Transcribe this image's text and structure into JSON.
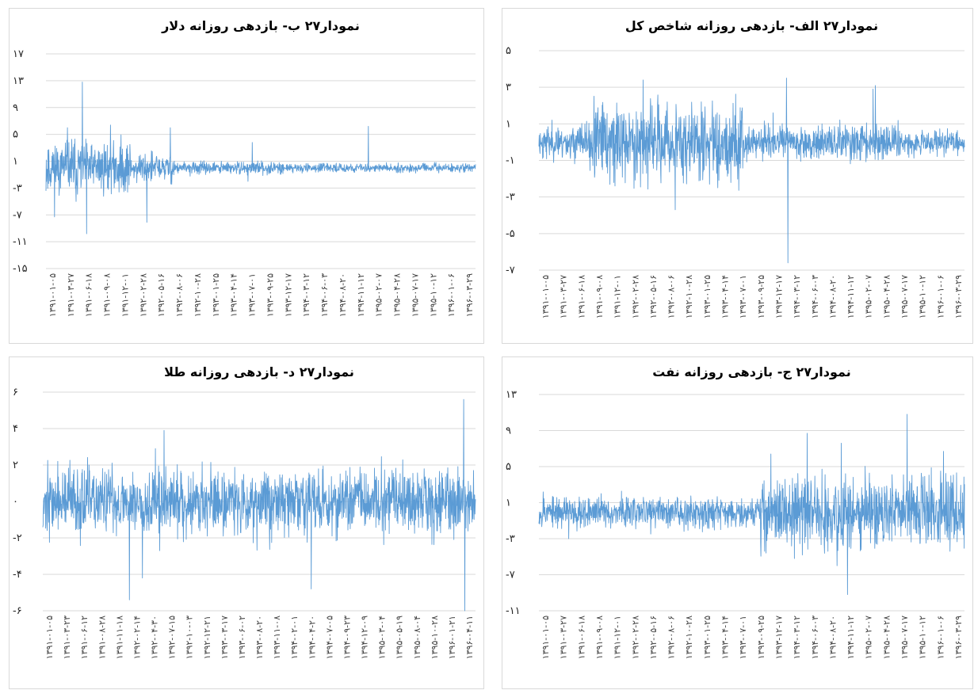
{
  "chart_data": [
    {
      "type": "line",
      "title": "نمودار۲۷ ب- بازدهی روزانه دلار",
      "y_ticks": [
        "۱۷",
        "۱۳",
        "۹",
        "۵",
        "۱",
        "-۳",
        "-۷",
        "-۱۱",
        "-۱۵"
      ],
      "ylim": [
        -15,
        17
      ],
      "x_ticks": [
        "۱۳۹۱-۰۱-۰۵",
        "۱۳۹۱-۰۳-۲۷",
        "۱۳۹۱-۰۶-۱۸",
        "۱۳۹۱-۰۹-۰۸",
        "۱۳۹۱-۱۲-۰۱",
        "۱۳۹۲-۰۲-۲۸",
        "۱۳۹۲-۰۵-۱۶",
        "۱۳۹۲-۰۸-۰۶",
        "۱۳۹۲-۱۰-۲۸",
        "۱۳۹۳-۰۱-۲۵",
        "۱۳۹۳-۰۴-۱۴",
        "۱۳۹۳-۰۷-۰۱",
        "۱۳۹۳-۰۹-۲۵",
        "۱۳۹۳-۱۲-۱۷",
        "۱۳۹۴-۰۳-۱۲",
        "۱۳۹۴-۰۶-۰۳",
        "۱۳۹۴-۰۸-۲۰",
        "۱۳۹۴-۱۱-۱۲",
        "۱۳۹۵-۰۲-۰۷",
        "۱۳۹۵-۰۴-۲۸",
        "۱۳۹۵-۰۷-۱۷",
        "۱۳۹۵-۱۰-۱۲",
        "۱۳۹۶-۰۱-۰۶",
        "۱۳۹۶-۰۳-۲۹"
      ],
      "series": [
        {
          "n": 1500,
          "seed": 11,
          "base": 0,
          "regimes": [
            [
              0,
              0.2,
              1.9
            ],
            [
              0.2,
              0.3,
              1.1
            ],
            [
              0.3,
              0.55,
              0.45
            ],
            [
              0.55,
              1.0,
              0.3
            ]
          ],
          "spikes": [
            [
              0.095,
              16.8
            ],
            [
              0.085,
              12.8
            ],
            [
              0.095,
              -9.8
            ],
            [
              0.02,
              -7.3
            ],
            [
              0.235,
              -8.1
            ],
            [
              0.75,
              -7.8
            ],
            [
              0.75,
              6.2
            ],
            [
              0.29,
              6.0
            ],
            [
              0.05,
              6.0
            ],
            [
              0.15,
              6.4
            ],
            [
              0.07,
              -5.0
            ],
            [
              0.48,
              3.8
            ],
            [
              0.47,
              -2.0
            ],
            [
              0.19,
              -3.6
            ]
          ]
        }
      ],
      "color": "#5b9bd5"
    },
    {
      "type": "line",
      "title": "نمودار۲۷ الف- بازدهی روزانه شاخص کل",
      "y_ticks": [
        "۵",
        "۳",
        "۱",
        "-۱",
        "-۳",
        "-۵",
        "-۷"
      ],
      "ylim": [
        -7,
        5
      ],
      "x_ticks": [
        "۱۳۹۱-۰۱-۰۵",
        "۱۳۹۱-۰۳-۲۷",
        "۱۳۹۱-۰۶-۱۸",
        "۱۳۹۱-۰۹-۰۸",
        "۱۳۹۱-۱۲-۰۱",
        "۱۳۹۲-۰۲-۲۸",
        "۱۳۹۲-۰۵-۱۶",
        "۱۳۹۲-۰۸-۰۶",
        "۱۳۹۲-۱۰-۲۸",
        "۱۳۹۳-۰۱-۲۵",
        "۱۳۹۳-۰۴-۱۴",
        "۱۳۹۳-۰۷-۰۱",
        "۱۳۹۳-۰۹-۲۵",
        "۱۳۹۳-۱۲-۱۷",
        "۱۳۹۴-۰۳-۱۲",
        "۱۳۹۴-۰۶-۰۳",
        "۱۳۹۴-۰۸-۲۰",
        "۱۳۹۴-۱۱-۱۲",
        "۱۳۹۵-۰۲-۰۷",
        "۱۳۹۵-۰۴-۲۸",
        "۱۳۹۵-۰۷-۱۷",
        "۱۳۹۵-۱۰-۱۲",
        "۱۳۹۶-۰۱-۰۶",
        "۱۳۹۶-۰۳-۲۹"
      ],
      "series": [
        {
          "n": 1500,
          "seed": 23,
          "base": 0,
          "regimes": [
            [
              0,
              0.12,
              0.45
            ],
            [
              0.12,
              0.48,
              1.05
            ],
            [
              0.48,
              0.65,
              0.45
            ],
            [
              0.65,
              0.85,
              0.55
            ],
            [
              0.85,
              1.0,
              0.3
            ]
          ],
          "spikes": [
            [
              0.585,
              -6.6
            ],
            [
              0.582,
              3.5
            ],
            [
              0.245,
              3.4
            ],
            [
              0.79,
              3.1
            ],
            [
              0.785,
              2.9
            ],
            [
              0.32,
              -3.7
            ],
            [
              0.55,
              1.6
            ]
          ]
        }
      ],
      "color": "#5b9bd5"
    },
    {
      "type": "line",
      "title": "نمودار۲۷ د- بازدهی روزانه طلا",
      "y_ticks": [
        "۶",
        "۴",
        "۲",
        "۰",
        "-۲",
        "-۴",
        "-۶"
      ],
      "ylim": [
        -6,
        6
      ],
      "x_ticks": [
        "۱۳۹۱-۰۱-۰۵",
        "۱۳۹۱-۰۳-۲۳",
        "۱۳۹۱-۰۶-۱۲",
        "۱۳۹۱-۰۸-۲۸",
        "۱۳۹۱-۱۱-۱۸",
        "۱۳۹۲-۰۲-۱۴",
        "۱۳۹۲-۰۴-۳۰",
        "۱۳۹۲-۰۷-۱۵",
        "۱۳۹۲-۱۰-۰۳",
        "۱۳۹۲-۱۲-۲۱",
        "۱۳۹۳-۰۳-۱۷",
        "۱۳۹۳-۰۶-۰۲",
        "۱۳۹۳-۰۸-۲۰",
        "۱۳۹۳-۱۱-۰۸",
        "۱۳۹۴-۰۲-۰۱",
        "۱۳۹۴-۰۴-۲۰",
        "۱۳۹۴-۰۷-۰۵",
        "۱۳۹۴-۰۹-۲۳",
        "۱۳۹۴-۱۲-۰۹",
        "۱۳۹۵-۰۳-۰۴",
        "۱۳۹۵-۰۵-۱۹",
        "۱۳۹۵-۰۸-۰۴",
        "۱۳۹۵-۱۰-۲۸",
        "۱۳۹۶-۰۱-۲۱",
        "۱۳۹۶-۰۴-۱۱"
      ],
      "series": [
        {
          "n": 1500,
          "seed": 37,
          "base": 0,
          "regimes": [
            [
              0,
              1.0,
              0.9
            ]
          ],
          "spikes": [
            [
              0.975,
              -6.0
            ],
            [
              0.972,
              5.6
            ],
            [
              0.28,
              3.9
            ],
            [
              0.2,
              -5.4
            ],
            [
              0.23,
              -4.2
            ],
            [
              0.62,
              -4.8
            ],
            [
              0.27,
              -2.7
            ],
            [
              0.26,
              2.9
            ]
          ]
        }
      ],
      "color": "#5b9bd5"
    },
    {
      "type": "line",
      "title": "نمودار۲۷ ج- بازدهی روزانه نفت",
      "y_ticks": [
        "۱۳",
        "۹",
        "۵",
        "۱",
        "-۳",
        "-۷",
        "-۱۱"
      ],
      "ylim": [
        -11,
        13
      ],
      "x_ticks": [
        "۱۳۹۱-۰۱-۰۵",
        "۱۳۹۱-۰۳-۲۷",
        "۱۳۹۱-۰۶-۱۸",
        "۱۳۹۱-۰۹-۰۸",
        "۱۳۹۱-۱۲-۰۱",
        "۱۳۹۲-۰۲-۲۸",
        "۱۳۹۲-۰۵-۱۶",
        "۱۳۹۲-۰۸-۰۶",
        "۱۳۹۲-۱۰-۲۸",
        "۱۳۹۳-۰۱-۲۵",
        "۱۳۹۳-۰۴-۱۴",
        "۱۳۹۳-۰۷-۰۱",
        "۱۳۹۳-۰۹-۲۵",
        "۱۳۹۳-۱۲-۱۷",
        "۱۳۹۴-۰۳-۱۲",
        "۱۳۹۴-۰۶-۰۳",
        "۱۳۹۴-۰۸-۲۰",
        "۱۳۹۴-۱۱-۱۲",
        "۱۳۹۵-۰۲-۰۷",
        "۱۳۹۵-۰۴-۲۸",
        "۱۳۹۵-۰۷-۱۷",
        "۱۳۹۵-۱۰-۱۲",
        "۱۳۹۶-۰۱-۰۶",
        "۱۳۹۶-۰۳-۲۹"
      ],
      "series": [
        {
          "n": 1500,
          "seed": 53,
          "base": 0,
          "regimes": [
            [
              0,
              0.52,
              0.85
            ],
            [
              0.52,
              1.0,
              1.9
            ]
          ],
          "spikes": [
            [
              0.865,
              10.8
            ],
            [
              0.63,
              8.7
            ],
            [
              0.545,
              6.4
            ],
            [
              0.71,
              7.6
            ],
            [
              0.725,
              -9.2
            ],
            [
              0.95,
              6.7
            ],
            [
              0.6,
              -5.2
            ],
            [
              0.53,
              -4.4
            ],
            [
              0.7,
              -6.0
            ],
            [
              0.01,
              2.2
            ],
            [
              0.07,
              -3.0
            ]
          ]
        }
      ],
      "color": "#5b9bd5"
    }
  ]
}
